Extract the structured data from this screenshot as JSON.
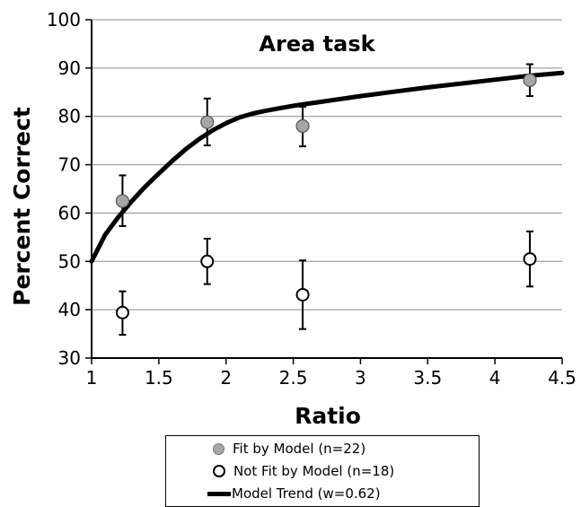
{
  "chart_data": {
    "type": "scatter",
    "title": "Area task",
    "xlabel": "Ratio",
    "ylabel": "Percent Correct",
    "xlim": [
      1,
      4.5
    ],
    "ylim": [
      30,
      100
    ],
    "x_ticks": [
      "1",
      "1.5",
      "2",
      "2.5",
      "3",
      "3.5",
      "4",
      "4.5"
    ],
    "y_ticks": [
      "30",
      "40",
      "50",
      "60",
      "70",
      "80",
      "90",
      "100"
    ],
    "grid": "horizontal",
    "legend_position": "bottom",
    "series": [
      {
        "name": "Fit by Model (n=22)",
        "marker": "filled-circle",
        "color": "#a6a6a6",
        "points": [
          {
            "x": 1.23,
            "y": 62.5,
            "err_low": 57.3,
            "err_high": 67.8
          },
          {
            "x": 1.86,
            "y": 78.8,
            "err_low": 74.0,
            "err_high": 83.7
          },
          {
            "x": 2.57,
            "y": 78.0,
            "err_low": 73.8,
            "err_high": 82.0
          },
          {
            "x": 4.26,
            "y": 87.5,
            "err_low": 84.2,
            "err_high": 90.8
          }
        ]
      },
      {
        "name": "Not Fit by Model (n=18)",
        "marker": "open-circle",
        "color": "#000000",
        "points": [
          {
            "x": 1.23,
            "y": 39.4,
            "err_low": 34.8,
            "err_high": 43.8
          },
          {
            "x": 1.86,
            "y": 50.0,
            "err_low": 45.3,
            "err_high": 54.7
          },
          {
            "x": 2.57,
            "y": 43.1,
            "err_low": 36.0,
            "err_high": 50.2
          },
          {
            "x": 4.26,
            "y": 50.5,
            "err_low": 44.8,
            "err_high": 56.2
          }
        ]
      },
      {
        "name": "Model Trend (w=0.62)",
        "kind": "line",
        "color": "#000000",
        "x": [
          1.0,
          1.1,
          1.2,
          1.3,
          1.4,
          1.5,
          1.6,
          1.7,
          1.8,
          1.9,
          2.0,
          2.1,
          2.2,
          2.3,
          2.4,
          2.5,
          2.7,
          3.0,
          3.25,
          3.5,
          3.75,
          4.0,
          4.25,
          4.5
        ],
        "y": [
          50.0,
          55.5,
          59.2,
          62.5,
          65.5,
          68.2,
          70.8,
          73.2,
          75.3,
          77.1,
          78.6,
          79.8,
          80.6,
          81.2,
          81.7,
          82.2,
          83.0,
          84.2,
          85.1,
          86.0,
          86.8,
          87.6,
          88.4,
          89.0
        ]
      }
    ]
  }
}
